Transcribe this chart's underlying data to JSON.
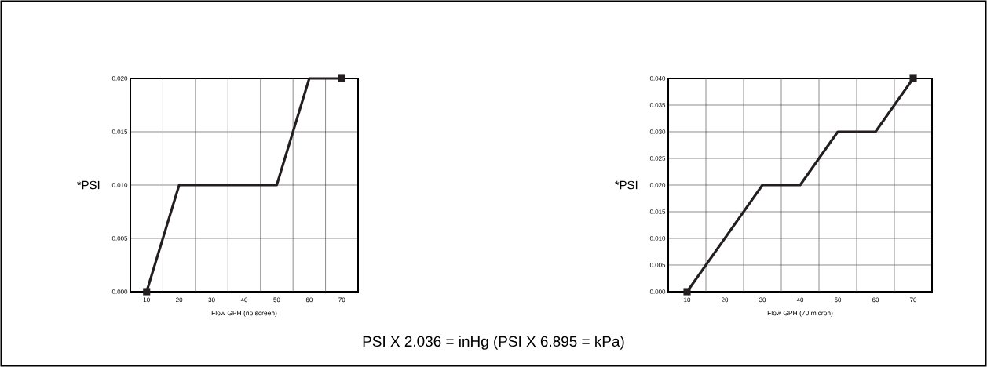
{
  "chart_data": [
    {
      "type": "line",
      "xlabel": "Flow GPH (no screen)",
      "ylabel": "*PSI",
      "x": [
        10,
        20,
        50,
        60,
        70
      ],
      "series": [
        {
          "color": "#231f20",
          "values": [
            0,
            0.01,
            0.01,
            0.02,
            0.02
          ]
        },
        {
          "type": "scatter",
          "marker": "square",
          "color": "#231f20",
          "values": [
            0,
            null,
            null,
            null,
            0.02
          ]
        }
      ],
      "xlim": [
        5,
        75
      ],
      "ylim": [
        0,
        0.02
      ],
      "xticks": [
        10,
        20,
        30,
        40,
        50,
        60,
        70,
        {
          "value": 15,
          "label": null
        },
        {
          "value": 25,
          "label": null
        },
        {
          "value": 35,
          "label": null
        },
        {
          "value": 45,
          "label": null
        },
        {
          "value": 55,
          "label": null
        },
        {
          "value": 65,
          "label": null
        }
      ],
      "yticks": [
        {
          "value": 0,
          "label": "0.000"
        },
        {
          "value": 0.005,
          "label": "0.005"
        },
        {
          "value": 0.01,
          "label": "0.010"
        },
        {
          "value": 0.015,
          "label": "0.015"
        },
        {
          "value": 0.02,
          "label": "0.020"
        }
      ],
      "grid": true,
      "line_style": "solid",
      "annotations": [
        "PSI X 2.036 = inHg (PSI X 6.895 = kPa)"
      ]
    },
    {
      "type": "line",
      "xlabel": "Flow GPH (70 micron)",
      "ylabel": "*PSI",
      "x": [
        10,
        30,
        40,
        50,
        60,
        70
      ],
      "series": [
        {
          "color": "#231f20",
          "values": [
            0,
            0.02,
            0.02,
            0.03,
            0.03,
            0.04
          ]
        },
        {
          "type": "scatter",
          "marker": "square",
          "color": "#231f20",
          "values": [
            0,
            null,
            null,
            null,
            null,
            0.04
          ]
        }
      ],
      "xlim": [
        5,
        75
      ],
      "ylim": [
        0,
        0.04
      ],
      "xticks": [
        10,
        20,
        30,
        40,
        50,
        60,
        70,
        {
          "value": 15,
          "label": null
        },
        {
          "value": 25,
          "label": null
        },
        {
          "value": 35,
          "label": null
        },
        {
          "value": 45,
          "label": null
        },
        {
          "value": 55,
          "label": null
        },
        {
          "value": 65,
          "label": null
        }
      ],
      "yticks": [
        {
          "value": 0,
          "label": "0.000"
        },
        {
          "value": 0.005,
          "label": "0.005"
        },
        {
          "value": 0.01,
          "label": "0.010"
        },
        {
          "value": 0.015,
          "label": "0.015"
        },
        {
          "value": 0.02,
          "label": "0.020"
        },
        {
          "value": 0.025,
          "label": "0.025"
        },
        {
          "value": 0.03,
          "label": "0.030"
        },
        {
          "value": 0.035,
          "label": "0.035"
        },
        {
          "value": 0.04,
          "label": "0.040"
        }
      ],
      "grid": true,
      "line_style": "solid"
    }
  ]
}
